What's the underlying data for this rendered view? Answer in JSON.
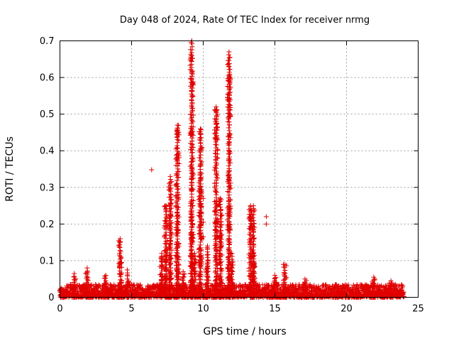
{
  "chart_data": {
    "type": "scatter",
    "title": "Day 048 of 2024, Rate Of TEC Index for receiver nrmg",
    "xlabel": "GPS time / hours",
    "ylabel": "ROTI / TECUs",
    "xlim": [
      0,
      25
    ],
    "ylim": [
      0,
      0.7
    ],
    "x_ticks": [
      "0",
      "5",
      "10",
      "15",
      "20",
      "25"
    ],
    "x_tick_values": [
      0,
      5,
      10,
      15,
      20,
      25
    ],
    "y_ticks": [
      "0",
      "0.1",
      "0.2",
      "0.3",
      "0.4",
      "0.5",
      "0.6",
      "0.7"
    ],
    "y_tick_values": [
      0,
      0.1,
      0.2,
      0.3,
      0.4,
      0.5,
      0.6,
      0.7
    ],
    "grid": true,
    "marker": "+",
    "color": "#e00000",
    "baseline": {
      "x_start": 0.0,
      "x_end": 24.0,
      "low": 0.0,
      "high": 0.035
    },
    "spikes": [
      {
        "x": 1.0,
        "top": 0.065
      },
      {
        "x": 1.9,
        "top": 0.08
      },
      {
        "x": 3.2,
        "top": 0.06
      },
      {
        "x": 4.2,
        "top": 0.16
      },
      {
        "x": 4.7,
        "top": 0.075
      },
      {
        "x": 7.1,
        "top": 0.12
      },
      {
        "x": 7.4,
        "top": 0.25
      },
      {
        "x": 7.7,
        "top": 0.33
      },
      {
        "x": 8.2,
        "top": 0.47
      },
      {
        "x": 8.6,
        "top": 0.07
      },
      {
        "x": 9.2,
        "top": 0.7
      },
      {
        "x": 9.4,
        "top": 0.12
      },
      {
        "x": 9.8,
        "top": 0.46
      },
      {
        "x": 10.3,
        "top": 0.14
      },
      {
        "x": 10.9,
        "top": 0.52
      },
      {
        "x": 11.2,
        "top": 0.27
      },
      {
        "x": 11.8,
        "top": 0.67
      },
      {
        "x": 12.0,
        "top": 0.12
      },
      {
        "x": 13.3,
        "top": 0.25
      },
      {
        "x": 13.5,
        "top": 0.25
      },
      {
        "x": 15.0,
        "top": 0.06
      },
      {
        "x": 15.7,
        "top": 0.09
      },
      {
        "x": 17.1,
        "top": 0.05
      },
      {
        "x": 19.4,
        "top": 0.03
      },
      {
        "x": 21.9,
        "top": 0.055
      },
      {
        "x": 23.1,
        "top": 0.045
      }
    ],
    "outliers": [
      {
        "x": 6.4,
        "y": 0.348
      },
      {
        "x": 8.1,
        "y": 0.405
      },
      {
        "x": 8.1,
        "y": 0.36
      },
      {
        "x": 8.1,
        "y": 0.305
      },
      {
        "x": 8.1,
        "y": 0.25
      },
      {
        "x": 8.1,
        "y": 0.19
      },
      {
        "x": 8.1,
        "y": 0.133
      },
      {
        "x": 9.2,
        "y": 0.66
      },
      {
        "x": 9.2,
        "y": 0.615
      },
      {
        "x": 9.2,
        "y": 0.598
      },
      {
        "x": 9.2,
        "y": 0.537
      },
      {
        "x": 9.2,
        "y": 0.52
      },
      {
        "x": 9.2,
        "y": 0.445
      },
      {
        "x": 9.2,
        "y": 0.345
      },
      {
        "x": 9.2,
        "y": 0.19
      },
      {
        "x": 9.2,
        "y": 0.15
      },
      {
        "x": 9.8,
        "y": 0.405
      },
      {
        "x": 9.8,
        "y": 0.36
      },
      {
        "x": 9.8,
        "y": 0.29
      },
      {
        "x": 9.8,
        "y": 0.255
      },
      {
        "x": 10.0,
        "y": 0.27
      },
      {
        "x": 10.0,
        "y": 0.205
      },
      {
        "x": 10.0,
        "y": 0.165
      },
      {
        "x": 10.9,
        "y": 0.508
      },
      {
        "x": 10.9,
        "y": 0.475
      },
      {
        "x": 10.9,
        "y": 0.435
      },
      {
        "x": 11.0,
        "y": 0.43
      },
      {
        "x": 11.0,
        "y": 0.38
      },
      {
        "x": 11.0,
        "y": 0.325
      },
      {
        "x": 11.0,
        "y": 0.2
      },
      {
        "x": 11.8,
        "y": 0.604
      },
      {
        "x": 11.8,
        "y": 0.518
      },
      {
        "x": 11.8,
        "y": 0.425
      },
      {
        "x": 11.8,
        "y": 0.32
      },
      {
        "x": 11.8,
        "y": 0.235
      },
      {
        "x": 14.4,
        "y": 0.22
      },
      {
        "x": 14.4,
        "y": 0.2
      }
    ]
  }
}
